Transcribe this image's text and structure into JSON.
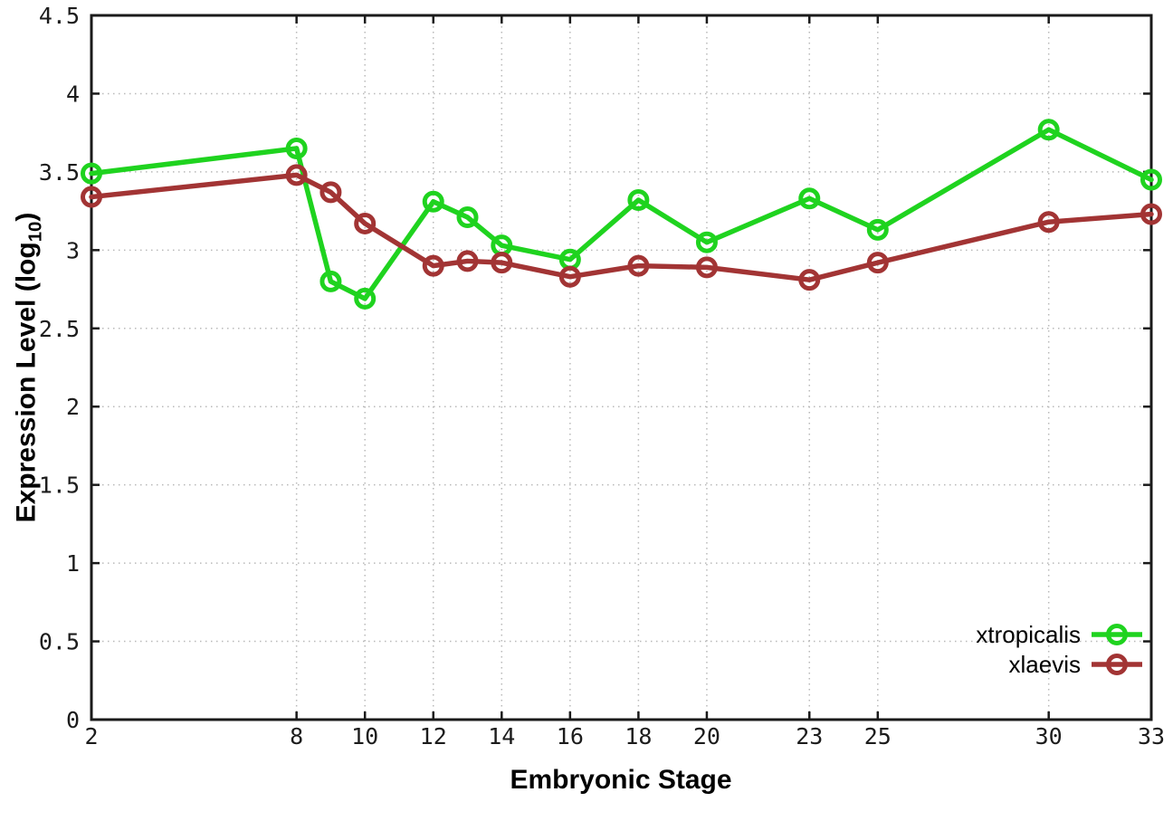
{
  "chart_data": {
    "type": "line",
    "title": "",
    "xlabel": "Embryonic Stage",
    "ylabel": {
      "main": "Expression Level (log",
      "sub": "10",
      "end": ")"
    },
    "xlim": [
      2,
      33
    ],
    "ylim": [
      0,
      4.5
    ],
    "grid": true,
    "legend_position": "bottom-right",
    "marker": "open-circle",
    "x_ticks": [
      "2",
      "8",
      "10",
      "12",
      "14",
      "16",
      "18",
      "20",
      "23",
      "25",
      "30",
      "33"
    ],
    "x_tick_values": [
      2,
      8,
      10,
      12,
      14,
      16,
      18,
      20,
      23,
      25,
      30,
      33
    ],
    "y_ticks": [
      "0",
      "0.5",
      "1",
      "1.5",
      "2",
      "2.5",
      "3",
      "3.5",
      "4",
      "4.5"
    ],
    "y_tick_values": [
      0,
      0.5,
      1,
      1.5,
      2,
      2.5,
      3,
      3.5,
      4,
      4.5
    ],
    "x": [
      2,
      8,
      9,
      10,
      12,
      13,
      14,
      16,
      18,
      20,
      23,
      25,
      30,
      33
    ],
    "series": [
      {
        "name": "xtropicalis",
        "color": "#1fd31f",
        "values": [
          3.49,
          3.65,
          2.8,
          2.69,
          3.31,
          3.21,
          3.03,
          2.94,
          3.32,
          3.05,
          3.33,
          3.13,
          3.77,
          3.45
        ]
      },
      {
        "name": "xlaevis",
        "color": "#a23434",
        "values": [
          3.34,
          3.48,
          3.37,
          3.17,
          2.9,
          2.93,
          2.92,
          2.83,
          2.9,
          2.89,
          2.81,
          2.92,
          3.18,
          3.23
        ]
      }
    ],
    "colors": {
      "grid": "#b9b9b9",
      "axis": "#1a1a1a",
      "background": "#ffffff"
    }
  }
}
